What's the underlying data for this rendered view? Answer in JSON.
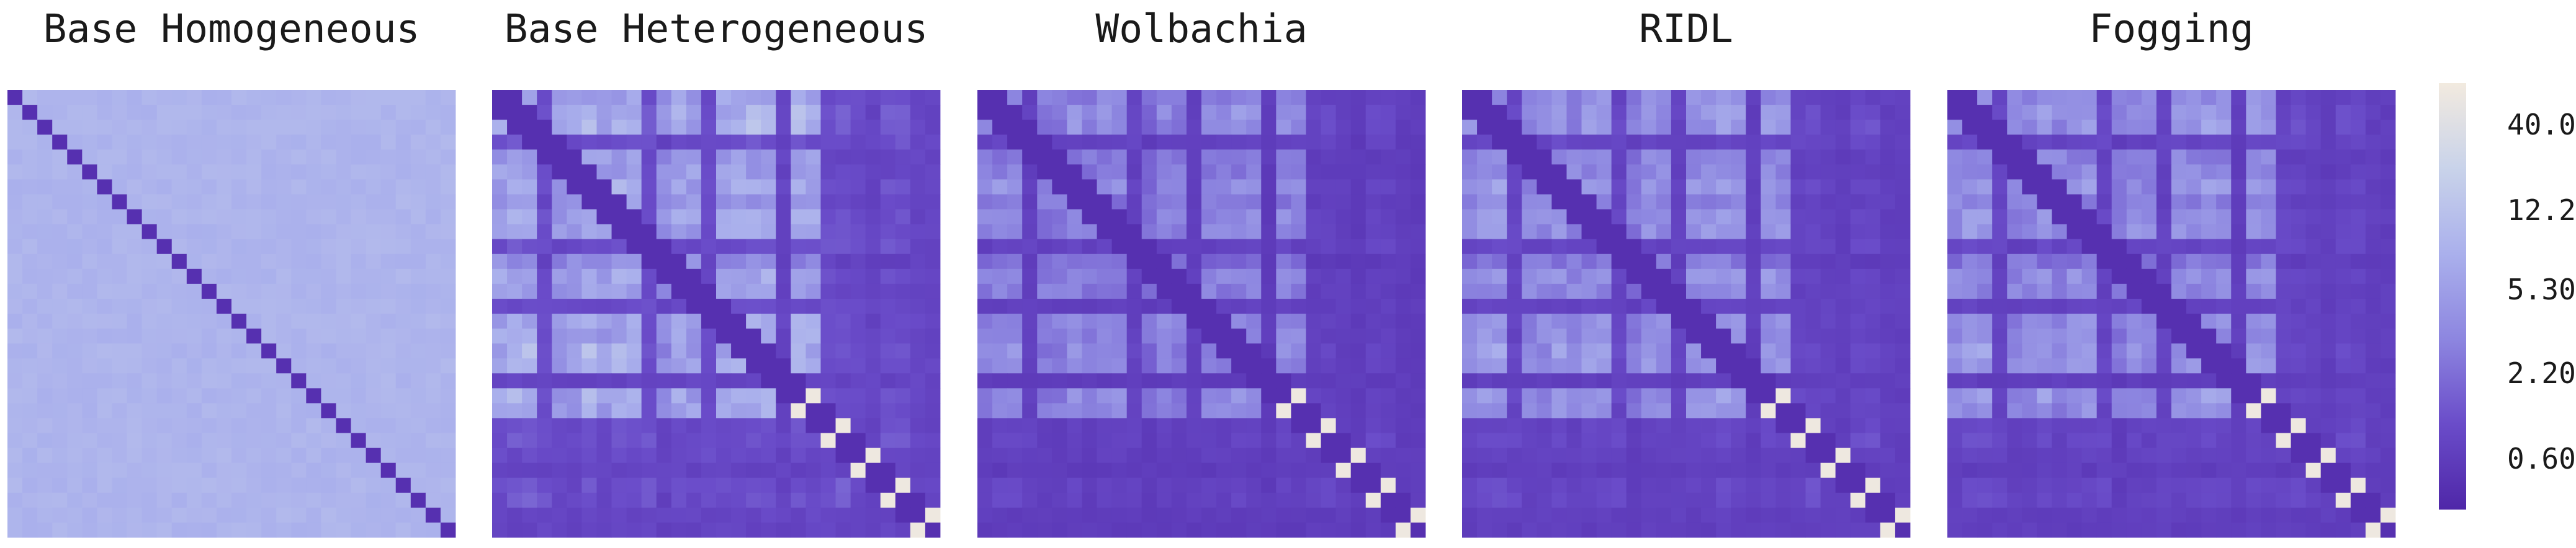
{
  "chart_data": {
    "type": "heatmap",
    "panels": [
      {
        "title": "Base Homogeneous"
      },
      {
        "title": "Base Heterogeneous"
      },
      {
        "title": "Wolbachia"
      },
      {
        "title": "RIDL"
      },
      {
        "title": "Fogging"
      }
    ],
    "matrix_size": 30,
    "colorbar": {
      "scale": "log",
      "ticks": [
        "40.0",
        "12.2",
        "5.30",
        "2.20",
        "0.60"
      ],
      "colors": [
        "#f2eadf",
        "#c9d3ea",
        "#aab0ec",
        "#8d86e0",
        "#6a4cc9",
        "#4f27a8"
      ]
    }
  }
}
